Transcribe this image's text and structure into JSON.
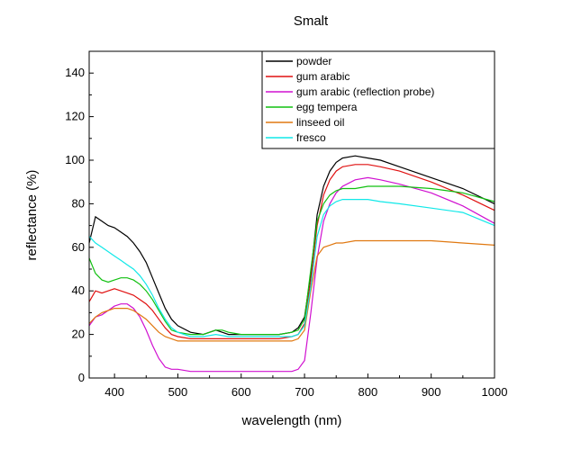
{
  "chart_data": {
    "type": "line",
    "title": "Smalt",
    "xlabel": "wavelength (nm)",
    "ylabel": "reflectance (%)",
    "xlim": [
      360,
      1000
    ],
    "ylim": [
      0,
      150
    ],
    "xticks": [
      400,
      500,
      600,
      700,
      800,
      900,
      1000
    ],
    "yticks": [
      0,
      20,
      40,
      60,
      80,
      100,
      120,
      140
    ],
    "grid": false,
    "legend_position": "top-right",
    "series": [
      {
        "name": "powder",
        "color": "#000000",
        "x": [
          360,
          370,
          380,
          390,
          400,
          410,
          420,
          430,
          440,
          450,
          460,
          470,
          480,
          490,
          500,
          520,
          540,
          560,
          570,
          580,
          600,
          620,
          640,
          660,
          680,
          690,
          700,
          710,
          720,
          730,
          740,
          750,
          760,
          780,
          800,
          820,
          850,
          900,
          950,
          1000
        ],
        "y": [
          62,
          74,
          72,
          70,
          69,
          67,
          65,
          62,
          58,
          53,
          46,
          39,
          32,
          27,
          24,
          21,
          20,
          22,
          21,
          20,
          20,
          20,
          20,
          20,
          21,
          23,
          28,
          48,
          75,
          88,
          95,
          99,
          101,
          102,
          101,
          100,
          97,
          92,
          87,
          80
        ]
      },
      {
        "name": "gum arabic",
        "color": "#e01010",
        "x": [
          360,
          370,
          380,
          390,
          400,
          410,
          420,
          430,
          440,
          450,
          460,
          470,
          480,
          490,
          500,
          520,
          540,
          560,
          580,
          600,
          620,
          640,
          660,
          680,
          690,
          700,
          710,
          720,
          730,
          740,
          750,
          760,
          780,
          800,
          820,
          850,
          900,
          950,
          1000
        ],
        "y": [
          35,
          40,
          39,
          40,
          41,
          40,
          39,
          38,
          36,
          34,
          31,
          27,
          23,
          20,
          19,
          18,
          18,
          18,
          18,
          18,
          18,
          18,
          18,
          19,
          20,
          25,
          45,
          70,
          84,
          91,
          95,
          97,
          98,
          98,
          97,
          95,
          90,
          84,
          77
        ]
      },
      {
        "name": "gum arabic (reflection probe)",
        "color": "#d010d0",
        "x": [
          360,
          370,
          380,
          390,
          400,
          410,
          420,
          430,
          440,
          450,
          460,
          470,
          480,
          490,
          500,
          520,
          540,
          560,
          580,
          600,
          620,
          640,
          660,
          680,
          690,
          700,
          710,
          720,
          730,
          740,
          750,
          760,
          780,
          800,
          820,
          850,
          900,
          950,
          1000
        ],
        "y": [
          24,
          28,
          29,
          31,
          33,
          34,
          34,
          32,
          28,
          22,
          15,
          9,
          5,
          4,
          4,
          3,
          3,
          3,
          3,
          3,
          3,
          3,
          3,
          3,
          4,
          8,
          30,
          55,
          72,
          80,
          85,
          88,
          91,
          92,
          91,
          89,
          85,
          79,
          71
        ]
      },
      {
        "name": "egg tempera",
        "color": "#10c010",
        "x": [
          360,
          370,
          380,
          390,
          400,
          410,
          420,
          430,
          440,
          450,
          460,
          470,
          480,
          490,
          500,
          520,
          540,
          560,
          570,
          580,
          600,
          620,
          640,
          660,
          680,
          690,
          700,
          710,
          720,
          730,
          740,
          750,
          760,
          780,
          800,
          820,
          850,
          900,
          950,
          1000
        ],
        "y": [
          55,
          48,
          45,
          44,
          45,
          46,
          46,
          45,
          43,
          40,
          36,
          31,
          26,
          22,
          21,
          20,
          20,
          22,
          22,
          21,
          20,
          20,
          20,
          20,
          21,
          22,
          27,
          50,
          72,
          80,
          84,
          86,
          87,
          87,
          88,
          88,
          88,
          87,
          85,
          81
        ]
      },
      {
        "name": "linseed oil",
        "color": "#e07810",
        "x": [
          360,
          370,
          380,
          390,
          400,
          410,
          420,
          430,
          440,
          450,
          460,
          470,
          480,
          490,
          500,
          520,
          540,
          560,
          580,
          600,
          620,
          640,
          660,
          680,
          690,
          700,
          710,
          720,
          730,
          740,
          750,
          760,
          780,
          800,
          820,
          850,
          900,
          950,
          1000
        ],
        "y": [
          25,
          28,
          30,
          31,
          32,
          32,
          32,
          31,
          29,
          27,
          24,
          21,
          19,
          18,
          17,
          17,
          17,
          17,
          17,
          17,
          17,
          17,
          17,
          17,
          18,
          22,
          40,
          56,
          60,
          61,
          62,
          62,
          63,
          63,
          63,
          63,
          63,
          62,
          61
        ]
      },
      {
        "name": "fresco",
        "color": "#10e8e8",
        "x": [
          360,
          370,
          380,
          390,
          400,
          410,
          420,
          430,
          440,
          450,
          460,
          470,
          480,
          490,
          500,
          520,
          540,
          560,
          580,
          600,
          620,
          640,
          660,
          680,
          690,
          700,
          710,
          720,
          730,
          740,
          750,
          760,
          780,
          800,
          820,
          850,
          900,
          950,
          1000
        ],
        "y": [
          65,
          62,
          60,
          58,
          56,
          54,
          52,
          50,
          47,
          43,
          38,
          32,
          27,
          23,
          21,
          19,
          19,
          20,
          19,
          19,
          19,
          19,
          19,
          19,
          20,
          24,
          42,
          65,
          75,
          79,
          81,
          82,
          82,
          82,
          81,
          80,
          78,
          76,
          70
        ]
      }
    ]
  }
}
